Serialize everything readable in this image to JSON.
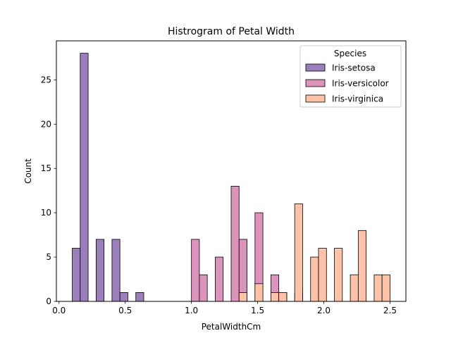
{
  "chart_data": {
    "type": "bar",
    "title": "Histrogram of Petal Width",
    "xlabel": "PetalWidthCm",
    "ylabel": "Count",
    "xlim": [
      -0.02,
      2.62
    ],
    "ylim": [
      0,
      29.4
    ],
    "xticks": [
      "0.0",
      "0.5",
      "1.0",
      "1.5",
      "2.0",
      "2.5"
    ],
    "yticks": [
      "0",
      "5",
      "10",
      "15",
      "20",
      "25"
    ],
    "bin_width": 0.06,
    "bin_start": 0.1,
    "legend": {
      "title": "Species",
      "placement": "top-right"
    },
    "series": [
      {
        "name": "Iris-setosa",
        "color": "#9a7fba",
        "bins": [
          [
            0.1,
            6
          ],
          [
            0.16,
            28
          ],
          [
            0.28,
            7
          ],
          [
            0.4,
            7
          ],
          [
            0.46,
            1
          ],
          [
            0.58,
            1
          ]
        ]
      },
      {
        "name": "Iris-versicolor",
        "color": "#dc94bd",
        "bins": [
          [
            1.0,
            7
          ],
          [
            1.06,
            3
          ],
          [
            1.18,
            5
          ],
          [
            1.3,
            13
          ],
          [
            1.36,
            7
          ],
          [
            1.48,
            10
          ],
          [
            1.6,
            3
          ],
          [
            1.66,
            1
          ],
          [
            1.78,
            1
          ]
        ]
      },
      {
        "name": "Iris-virginica",
        "color": "#fdc2a7",
        "bins": [
          [
            1.36,
            1
          ],
          [
            1.48,
            2
          ],
          [
            1.6,
            1
          ],
          [
            1.66,
            1
          ],
          [
            1.78,
            11
          ],
          [
            1.9,
            5
          ],
          [
            1.96,
            6
          ],
          [
            2.08,
            6
          ],
          [
            2.2,
            3
          ],
          [
            2.26,
            8
          ],
          [
            2.38,
            3
          ],
          [
            2.44,
            3
          ]
        ]
      }
    ],
    "overlap_color": "#e07a94"
  }
}
